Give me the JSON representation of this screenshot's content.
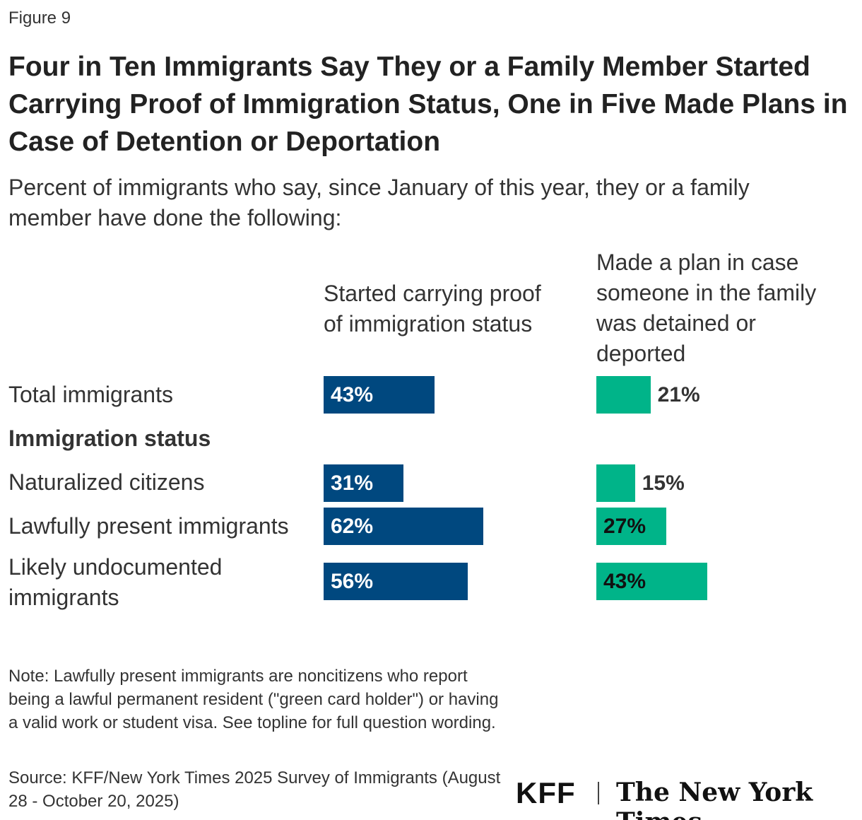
{
  "figure_label": "Figure 9",
  "title": "Four in Ten Immigrants Say They or a Family Member Started Carrying Proof of Immigration Status, One in Five Made Plans in Case of Detention or Deportation",
  "subtitle": "Percent of immigrants who say, since January of this year, they or a family member have done the following:",
  "chart_data": {
    "type": "bar",
    "orientation": "horizontal",
    "categories": [
      "Total immigrants",
      "Naturalized citizens",
      "Lawfully present immigrants",
      "Likely undocumented immigrants"
    ],
    "group_heading": "Immigration status",
    "series": [
      {
        "name": "Started carrying proof of immigration status",
        "color": "#00487f",
        "values": [
          43,
          31,
          62,
          56
        ]
      },
      {
        "name": "Made a plan in case someone in the family was detained or deported",
        "color": "#00b489",
        "values": [
          21,
          15,
          27,
          43
        ]
      }
    ],
    "value_labels": [
      [
        "43%",
        "31%",
        "62%",
        "56%"
      ],
      [
        "21%",
        "15%",
        "27%",
        "43%"
      ]
    ],
    "xlim": [
      0,
      100
    ]
  },
  "note": "Note: Lawfully present immigrants are noncitizens who report being a lawful permanent resident (\"green card holder\") or having a valid work or student visa. See topline for full question wording.",
  "source": "Source: KFF/New York Times 2025 Survey of Immigrants (August 28 - October 20, 2025)",
  "logos": {
    "kff": "KFF",
    "nyt": "The New York Times"
  }
}
